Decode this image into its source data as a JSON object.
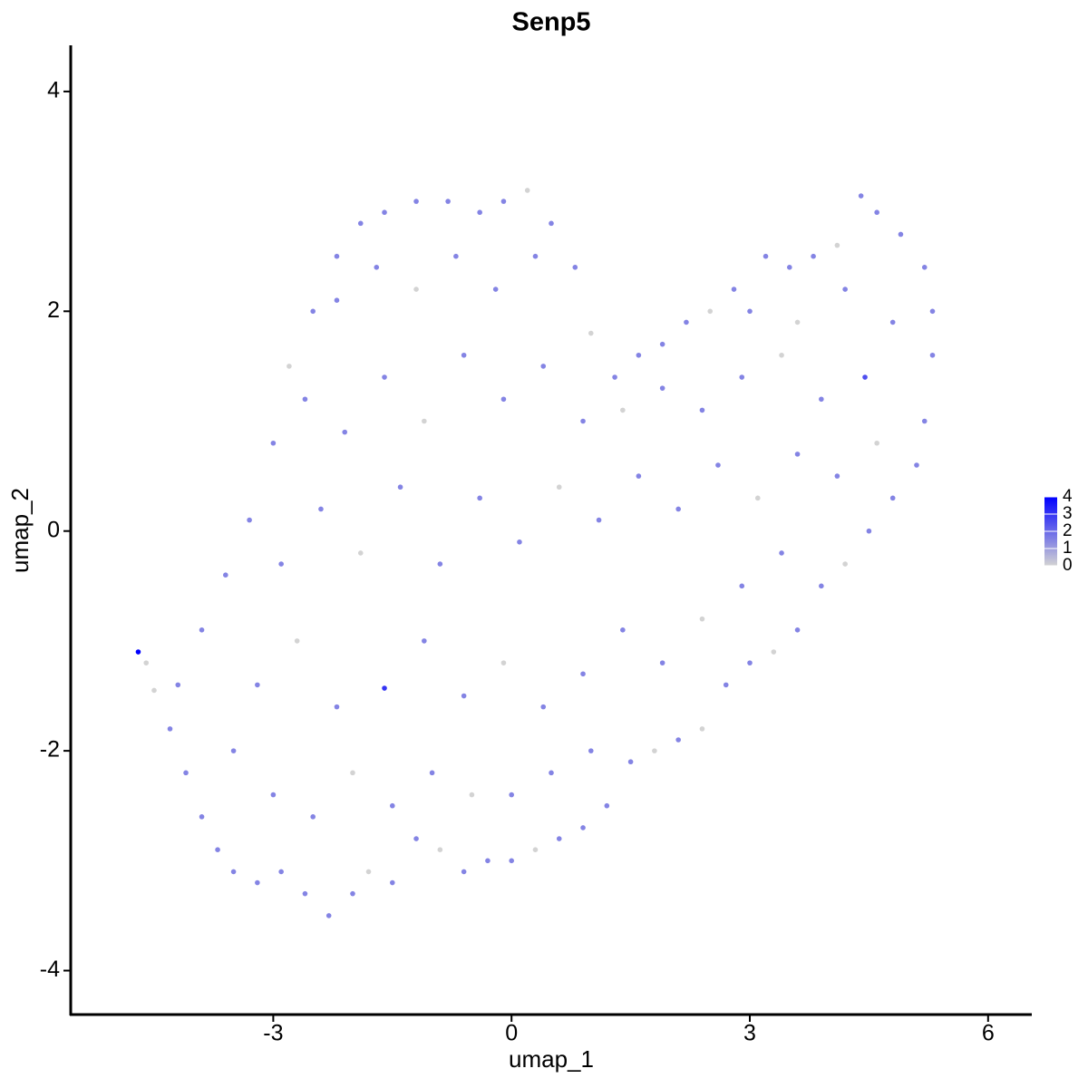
{
  "chart_data": {
    "type": "scatter",
    "title": "Senp5",
    "x_label": "umap_1",
    "y_label": "umap_2",
    "xlim": [
      -5.55,
      6.55
    ],
    "ylim": [
      -4.4,
      4.42
    ],
    "xticks": [
      -3,
      0,
      3,
      6
    ],
    "yticks": [
      -4,
      -2,
      0,
      2,
      4
    ],
    "color_low": "#d3d3d3",
    "color_high": "#0000ff",
    "clim": [
      0,
      4
    ],
    "cticks": [
      0,
      1,
      2,
      3,
      4
    ],
    "x": [
      -4.7,
      -4.6,
      -4.5,
      -4.3,
      -4.1,
      -3.9,
      -3.7,
      -3.5,
      -3.2,
      -2.9,
      -2.6,
      -2.3,
      -2.0,
      -1.8,
      -1.5,
      -1.2,
      -0.9,
      -0.6,
      -0.3,
      0,
      0.3,
      0.6,
      0.9,
      1.2,
      1.5,
      1.8,
      2.1,
      2.4,
      2.7,
      3.0,
      3.3,
      3.6,
      3.9,
      4.2,
      4.5,
      4.8,
      5.1,
      5.2,
      5.3,
      5.3,
      5.2,
      4.9,
      4.6,
      4.4,
      4.1,
      3.8,
      3.5,
      3.2,
      2.8,
      2.5,
      2.2,
      1.9,
      1.6,
      1.3,
      1.0,
      0.8,
      0.5,
      0.2,
      -0.1,
      -0.4,
      -0.8,
      -1.2,
      -1.6,
      -1.9,
      -2.2,
      -2.5,
      -2.8,
      -3.0,
      -3.3,
      -3.6,
      -3.9,
      -4.2,
      -3.5,
      -3.0,
      -2.5,
      -2.0,
      -1.5,
      -1.0,
      -0.5,
      0.0,
      0.5,
      1.0,
      -3.2,
      -2.7,
      -2.2,
      -1.6,
      -1.1,
      -0.6,
      -0.1,
      0.4,
      0.9,
      1.4,
      1.9,
      2.4,
      2.9,
      3.4,
      -2.9,
      -2.4,
      -1.9,
      -1.4,
      -0.9,
      -0.4,
      0.1,
      0.6,
      1.1,
      1.6,
      2.1,
      2.6,
      3.1,
      3.6,
      4.1,
      4.6,
      -2.6,
      -2.1,
      -1.6,
      -1.1,
      -0.6,
      -0.1,
      0.4,
      0.9,
      1.4,
      1.9,
      2.4,
      2.9,
      3.4,
      3.9,
      4.45,
      4.8,
      -2.2,
      -1.7,
      -1.2,
      -0.7,
      -0.2,
      0.3,
      3.0,
      3.6,
      4.2
    ],
    "y": [
      -1.1,
      -1.2,
      -1.45,
      -1.8,
      -2.2,
      -2.6,
      -2.9,
      -3.1,
      -3.2,
      -3.1,
      -3.3,
      -3.5,
      -3.3,
      -3.1,
      -3.2,
      -2.8,
      -2.9,
      -3.1,
      -3.0,
      -3.0,
      -2.9,
      -2.8,
      -2.7,
      -2.5,
      -2.1,
      -2.0,
      -1.9,
      -1.8,
      -1.4,
      -1.2,
      -1.1,
      -0.9,
      -0.5,
      -0.3,
      0,
      0.3,
      0.6,
      1.0,
      1.6,
      2.0,
      2.4,
      2.7,
      2.9,
      3.05,
      2.6,
      2.5,
      2.4,
      2.5,
      2.2,
      2.0,
      1.9,
      1.7,
      1.6,
      1.4,
      1.8,
      2.4,
      2.8,
      3.1,
      3.0,
      2.9,
      3.0,
      3.0,
      2.9,
      2.8,
      2.5,
      2.0,
      1.5,
      0.8,
      0.1,
      -0.4,
      -0.9,
      -1.4,
      -2.0,
      -2.4,
      -2.6,
      -2.2,
      -2.5,
      -2.2,
      -2.4,
      -2.4,
      -2.2,
      -2.0,
      -1.4,
      -1.0,
      -1.6,
      -1.43,
      -1.0,
      -1.5,
      -1.2,
      -1.6,
      -1.3,
      -0.9,
      -1.2,
      -0.8,
      -0.5,
      -0.2,
      -0.3,
      0.2,
      -0.2,
      0.4,
      -0.3,
      0.3,
      -0.1,
      0.4,
      0.1,
      0.5,
      0.2,
      0.6,
      0.3,
      0.7,
      0.5,
      0.8,
      1.2,
      0.9,
      1.4,
      1.0,
      1.6,
      1.2,
      1.5,
      1.0,
      1.1,
      1.3,
      1.1,
      1.4,
      1.6,
      1.2,
      1.4,
      1.9,
      2.1,
      2.4,
      2.2,
      2.5,
      2.2,
      2.5,
      2.0,
      1.9,
      2.2
    ],
    "values": [
      4,
      0,
      0,
      1.5,
      1.5,
      1.5,
      1.5,
      1.5,
      1.5,
      1.5,
      1.5,
      1.5,
      1.5,
      0,
      1.5,
      1.5,
      0,
      1.5,
      1.5,
      1.5,
      0,
      1.5,
      1.5,
      1.5,
      1.5,
      0,
      1.5,
      0,
      1.5,
      1.5,
      0,
      1.5,
      1.5,
      0,
      1.5,
      1.5,
      1.5,
      1.5,
      1.5,
      1.5,
      1.5,
      1.5,
      1.5,
      1.5,
      0,
      1.5,
      1.5,
      1.5,
      1.5,
      0,
      1.5,
      1.5,
      1.5,
      1.5,
      0,
      1.5,
      1.5,
      0,
      1.5,
      1.5,
      1.5,
      1.5,
      1.5,
      1.5,
      1.5,
      1.5,
      0,
      1.5,
      1.5,
      1.5,
      1.5,
      1.5,
      1.5,
      1.5,
      1.5,
      0,
      1.5,
      1.5,
      0,
      1.5,
      1.5,
      1.5,
      1.5,
      0,
      1.5,
      3,
      1.5,
      1.5,
      0,
      1.5,
      1.5,
      1.5,
      1.5,
      0,
      1.5,
      1.5,
      1.5,
      1.5,
      0,
      1.5,
      1.5,
      1.5,
      1.5,
      0,
      1.5,
      1.5,
      1.5,
      1.5,
      0,
      1.5,
      1.5,
      0,
      1.5,
      1.5,
      1.5,
      0,
      1.5,
      1.5,
      1.5,
      1.5,
      0,
      1.5,
      1.5,
      1.5,
      0,
      1.5,
      2.5,
      1.5,
      1.5,
      1.5,
      0,
      1.5,
      1.5,
      1.5,
      1.5,
      0,
      1.5
    ]
  }
}
